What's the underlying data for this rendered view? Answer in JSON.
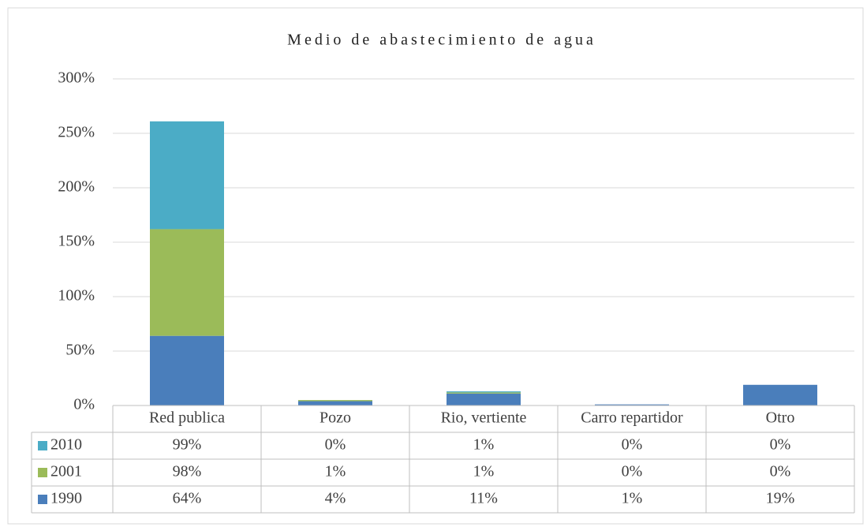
{
  "chart_data": {
    "type": "stacked_bar",
    "title": "Medio de abastecimiento de agua",
    "categories": [
      "Red publica",
      "Pozo",
      "Rio, vertiente",
      "Carro repartidor",
      "Otro"
    ],
    "series": [
      {
        "name": "1990",
        "color": "#4a7ebb",
        "values": [
          64,
          4,
          11,
          1,
          19
        ],
        "value_labels": [
          "64%",
          "4%",
          "11%",
          "1%",
          "19%"
        ]
      },
      {
        "name": "2001",
        "color": "#9bbb59",
        "values": [
          98,
          1,
          1,
          0,
          0
        ],
        "value_labels": [
          "98%",
          "1%",
          "1%",
          "0%",
          "0%"
        ]
      },
      {
        "name": "2010",
        "color": "#4bacc6",
        "values": [
          99,
          0,
          1,
          0,
          0
        ],
        "value_labels": [
          "99%",
          "0%",
          "1%",
          "0%",
          "0%"
        ]
      }
    ],
    "ylim": [
      0,
      300
    ],
    "yticks": [
      {
        "value": 0,
        "label": "0%"
      },
      {
        "value": 50,
        "label": "50%"
      },
      {
        "value": 100,
        "label": "100%"
      },
      {
        "value": 150,
        "label": "150%"
      },
      {
        "value": 200,
        "label": "200%"
      },
      {
        "value": 250,
        "label": "250%"
      },
      {
        "value": 300,
        "label": "300%"
      }
    ],
    "grid": true
  }
}
